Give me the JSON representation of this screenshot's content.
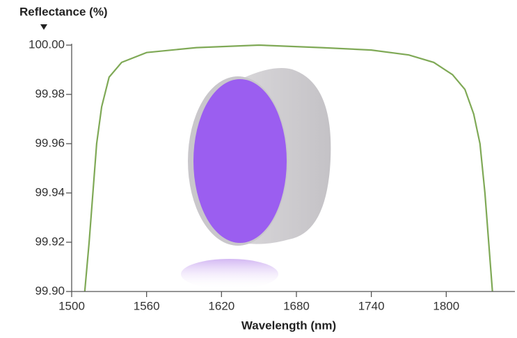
{
  "chart_data": {
    "type": "line",
    "y_label": "Reflectance (%)",
    "x_label": "Wavelength (nm)",
    "xlim": [
      1500,
      1855
    ],
    "xticks": [
      1500,
      1560,
      1620,
      1680,
      1740,
      1800
    ],
    "ylim": [
      99.9,
      100.0
    ],
    "yticks": [
      {
        "value": 99.9,
        "label": "99.90"
      },
      99.92,
      99.94,
      99.96,
      99.98,
      {
        "value": 100.0,
        "label": "100.00"
      }
    ],
    "grid": false,
    "series": [
      {
        "color": "#7fa956",
        "x": [
          1510.5,
          1514,
          1517,
          1520,
          1524,
          1530,
          1540,
          1560,
          1600,
          1650,
          1700,
          1740,
          1770,
          1790,
          1805,
          1815,
          1822,
          1827,
          1831,
          1834,
          1837
        ],
        "values": [
          99.9,
          99.92,
          99.94,
          99.96,
          99.975,
          99.987,
          99.993,
          99.997,
          99.999,
          100.0,
          99.999,
          99.998,
          99.996,
          99.993,
          99.988,
          99.982,
          99.972,
          99.96,
          99.94,
          99.92,
          99.9
        ]
      }
    ]
  }
}
